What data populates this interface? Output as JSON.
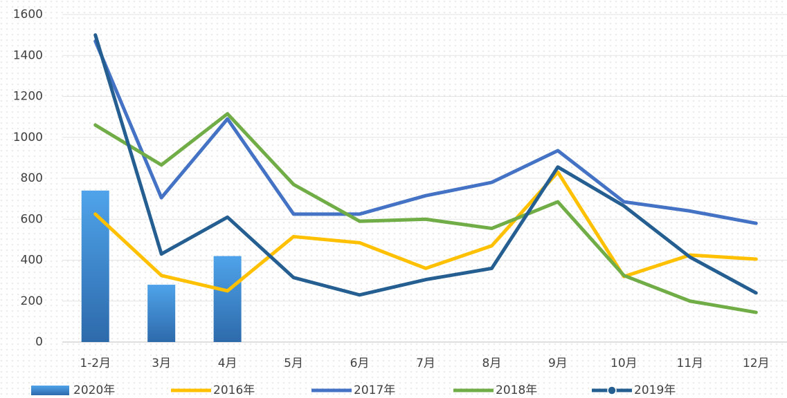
{
  "chart_data": {
    "type": "combo",
    "categories": [
      "1-2月",
      "3月",
      "4月",
      "5月",
      "6月",
      "7月",
      "8月",
      "9月",
      "10月",
      "11月",
      "12月"
    ],
    "ylim": [
      0,
      1600
    ],
    "yticks": [
      0,
      200,
      400,
      600,
      800,
      1000,
      1200,
      1400,
      1600
    ],
    "grid": true,
    "legend": "bottom",
    "series": [
      {
        "name": "2020年",
        "type": "bar",
        "color": "#3a86d0",
        "values": [
          740,
          280,
          420,
          null,
          null,
          null,
          null,
          null,
          null,
          null,
          null
        ]
      },
      {
        "name": "2016年",
        "type": "line",
        "color": "#ffc000",
        "values": [
          625,
          325,
          250,
          515,
          485,
          360,
          470,
          830,
          320,
          425,
          405
        ]
      },
      {
        "name": "2017年",
        "type": "line",
        "color": "#4472c4",
        "values": [
          1470,
          705,
          1090,
          625,
          625,
          715,
          780,
          935,
          685,
          640,
          580
        ]
      },
      {
        "name": "2018年",
        "type": "line",
        "color": "#70ad47",
        "values": [
          1060,
          865,
          1115,
          770,
          590,
          600,
          555,
          685,
          325,
          200,
          145
        ]
      },
      {
        "name": "2019年",
        "type": "line",
        "color": "#255e91",
        "marker": true,
        "values": [
          1500,
          430,
          610,
          315,
          230,
          305,
          360,
          855,
          665,
          415,
          240
        ]
      }
    ]
  }
}
